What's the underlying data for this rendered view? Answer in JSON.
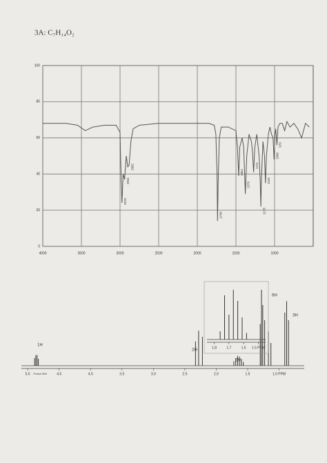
{
  "chart_data": [
    {
      "type": "line",
      "title": "3A: C₇H₁₄O₂",
      "x": [
        4000,
        3700,
        3550,
        3450,
        3350,
        3200,
        3050,
        3000,
        2990,
        2975,
        2960,
        2941,
        2920,
        2900,
        2882,
        2860,
        2830,
        2750,
        2500,
        2200,
        2000,
        1850,
        1780,
        1760,
        1745,
        1738,
        1730,
        1715,
        1690,
        1600,
        1500,
        1480,
        1464,
        1450,
        1420,
        1400,
        1379,
        1360,
        1330,
        1300,
        1285,
        1271,
        1255,
        1230,
        1200,
        1185,
        1178,
        1170,
        1150,
        1130,
        1118,
        1105,
        1080,
        1060,
        1040,
        1020,
        1006,
        995,
        985,
        970,
        955,
        930,
        900,
        870,
        840,
        800,
        750,
        700,
        650,
        600,
        550
      ],
      "values": [
        68,
        68,
        67,
        64,
        66,
        67,
        67,
        63,
        45,
        24,
        40,
        37,
        50,
        44,
        45,
        58,
        65,
        67,
        68,
        68,
        68,
        68,
        67,
        62,
        40,
        14,
        35,
        60,
        66,
        66,
        64,
        55,
        39,
        55,
        60,
        55,
        29,
        50,
        62,
        58,
        52,
        41,
        55,
        62,
        50,
        35,
        22,
        38,
        58,
        50,
        35,
        50,
        62,
        66,
        62,
        60,
        48,
        62,
        65,
        56,
        66,
        68,
        68,
        64,
        69,
        66,
        68,
        65,
        60,
        68,
        66
      ],
      "color": "#555555",
      "xlim": [
        4000,
        500
      ],
      "xticks": [
        4000,
        3500,
        3000,
        2500,
        2000,
        1500,
        1000
      ],
      "ylim": [
        0,
        100
      ],
      "yticks": [
        0,
        20,
        40,
        60,
        80,
        100
      ],
      "grid": true,
      "annotations": [
        2975,
        2941,
        2882,
        1738,
        1464,
        1379,
        1271,
        1178,
        1118,
        1006,
        970
      ]
    },
    {
      "type": "stick",
      "x": [
        4.89,
        4.87,
        4.85,
        4.83,
        2.33,
        2.28,
        2.22,
        1.72,
        1.69,
        1.66,
        1.63,
        1.6,
        1.57,
        1.3,
        1.28,
        1.26,
        1.23,
        1.17,
        1.13,
        0.91,
        0.88,
        0.85
      ],
      "values": [
        10,
        14,
        14,
        9,
        32,
        46,
        38,
        6,
        10,
        13,
        12,
        9,
        5,
        55,
        100,
        80,
        60,
        45,
        30,
        70,
        85,
        60
      ],
      "color": "#333333",
      "xlim": [
        5.1,
        0.6
      ],
      "ylim": [
        0,
        100
      ],
      "xticks": [
        {
          "value": 5,
          "label": "5.0"
        },
        4.5,
        {
          "value": 4,
          "label": "4.0"
        },
        3.5,
        {
          "value": 3,
          "label": "3.0"
        },
        2.5,
        {
          "value": 2,
          "label": "2.0"
        },
        1.5,
        {
          "value": 1,
          "label": "1.0 PPM"
        }
      ],
      "note": "Proton 500",
      "integrations": [
        "1H",
        "2H",
        "2H",
        "6H",
        "3H"
      ]
    },
    {
      "type": "stick",
      "x": [
        1.76,
        1.73,
        1.7,
        1.67,
        1.64,
        1.61,
        1.58
      ],
      "values": [
        15,
        80,
        45,
        90,
        70,
        40,
        12
      ],
      "color": "#333333",
      "xlim": [
        1.85,
        1.45
      ],
      "ylim": [
        0,
        100
      ],
      "xticks": [
        1.8,
        1.7,
        1.6,
        {
          "value": 1.5,
          "label": "1.5 PPM"
        }
      ]
    }
  ]
}
